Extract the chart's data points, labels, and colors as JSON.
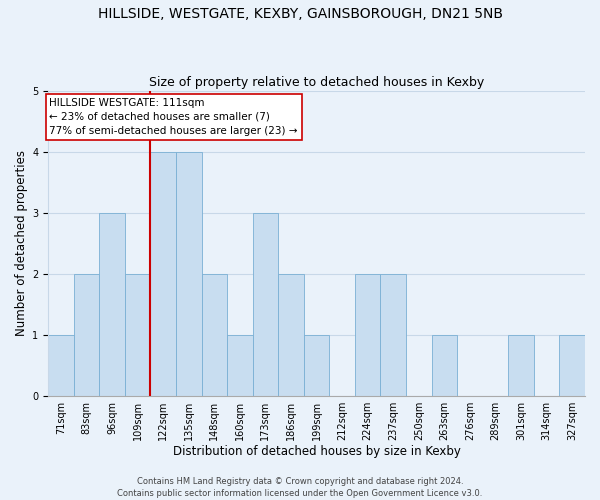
{
  "title": "HILLSIDE, WESTGATE, KEXBY, GAINSBOROUGH, DN21 5NB",
  "subtitle": "Size of property relative to detached houses in Kexby",
  "xlabel": "Distribution of detached houses by size in Kexby",
  "ylabel": "Number of detached properties",
  "bar_labels": [
    "71sqm",
    "83sqm",
    "96sqm",
    "109sqm",
    "122sqm",
    "135sqm",
    "148sqm",
    "160sqm",
    "173sqm",
    "186sqm",
    "199sqm",
    "212sqm",
    "224sqm",
    "237sqm",
    "250sqm",
    "263sqm",
    "276sqm",
    "289sqm",
    "301sqm",
    "314sqm",
    "327sqm"
  ],
  "bar_values": [
    1,
    2,
    3,
    2,
    4,
    4,
    2,
    1,
    3,
    2,
    1,
    0,
    2,
    2,
    0,
    1,
    0,
    0,
    1,
    0,
    1
  ],
  "bar_color": "#c8ddf0",
  "bar_edge_color": "#7aafd4",
  "grid_color": "#c8d8e8",
  "background_color": "#eaf2fa",
  "vline_x_index": 3,
  "vline_color": "#cc0000",
  "annotation_title": "HILLSIDE WESTGATE: 111sqm",
  "annotation_line1": "← 23% of detached houses are smaller (7)",
  "annotation_line2": "77% of semi-detached houses are larger (23) →",
  "annotation_box_color": "#ffffff",
  "annotation_box_edge_color": "#cc0000",
  "ylim": [
    0,
    5
  ],
  "yticks": [
    0,
    1,
    2,
    3,
    4,
    5
  ],
  "footer1": "Contains HM Land Registry data © Crown copyright and database right 2024.",
  "footer2": "Contains public sector information licensed under the Open Government Licence v3.0.",
  "title_fontsize": 10,
  "subtitle_fontsize": 9,
  "xlabel_fontsize": 8.5,
  "ylabel_fontsize": 8.5,
  "tick_fontsize": 7,
  "footer_fontsize": 6,
  "annotation_fontsize": 7.5
}
